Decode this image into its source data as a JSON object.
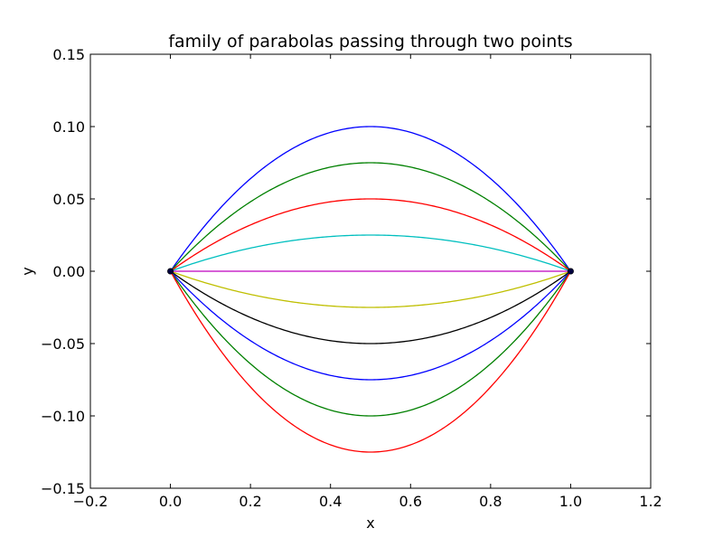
{
  "chart_data": {
    "type": "line",
    "title": "family of parabolas passing through two points",
    "xlabel": "x",
    "ylabel": "y",
    "xlim": [
      -0.2,
      1.2
    ],
    "ylim": [
      -0.15,
      0.15
    ],
    "x_ticks": [
      -0.2,
      0.0,
      0.2,
      0.4,
      0.6,
      0.8,
      1.0,
      1.2
    ],
    "y_ticks": [
      -0.15,
      -0.1,
      -0.05,
      0.0,
      0.05,
      0.1,
      0.15
    ],
    "x_tick_labels": [
      "−0.2",
      "0.0",
      "0.2",
      "0.4",
      "0.6",
      "0.8",
      "1.0",
      "1.2"
    ],
    "y_tick_labels": [
      "−0.15",
      "−0.10",
      "−0.05",
      "0.00",
      "0.05",
      "0.10",
      "0.15"
    ],
    "grid": false,
    "points": [
      {
        "x": 0.0,
        "y": 0.0
      },
      {
        "x": 1.0,
        "y": 0.0
      }
    ],
    "point_color": "#00003f",
    "series": [
      {
        "peak_at_x_0_5": 0.1,
        "color": "#0000ff"
      },
      {
        "peak_at_x_0_5": 0.075,
        "color": "#008000"
      },
      {
        "peak_at_x_0_5": 0.05,
        "color": "#ff0000"
      },
      {
        "peak_at_x_0_5": 0.025,
        "color": "#00bfbf"
      },
      {
        "peak_at_x_0_5": 0.0,
        "color": "#bf00bf"
      },
      {
        "peak_at_x_0_5": -0.025,
        "color": "#bfbf00"
      },
      {
        "peak_at_x_0_5": -0.05,
        "color": "#000000"
      },
      {
        "peak_at_x_0_5": -0.075,
        "color": "#0000ff"
      },
      {
        "peak_at_x_0_5": -0.1,
        "color": "#008000"
      },
      {
        "peak_at_x_0_5": -0.125,
        "color": "#ff0000"
      }
    ]
  }
}
